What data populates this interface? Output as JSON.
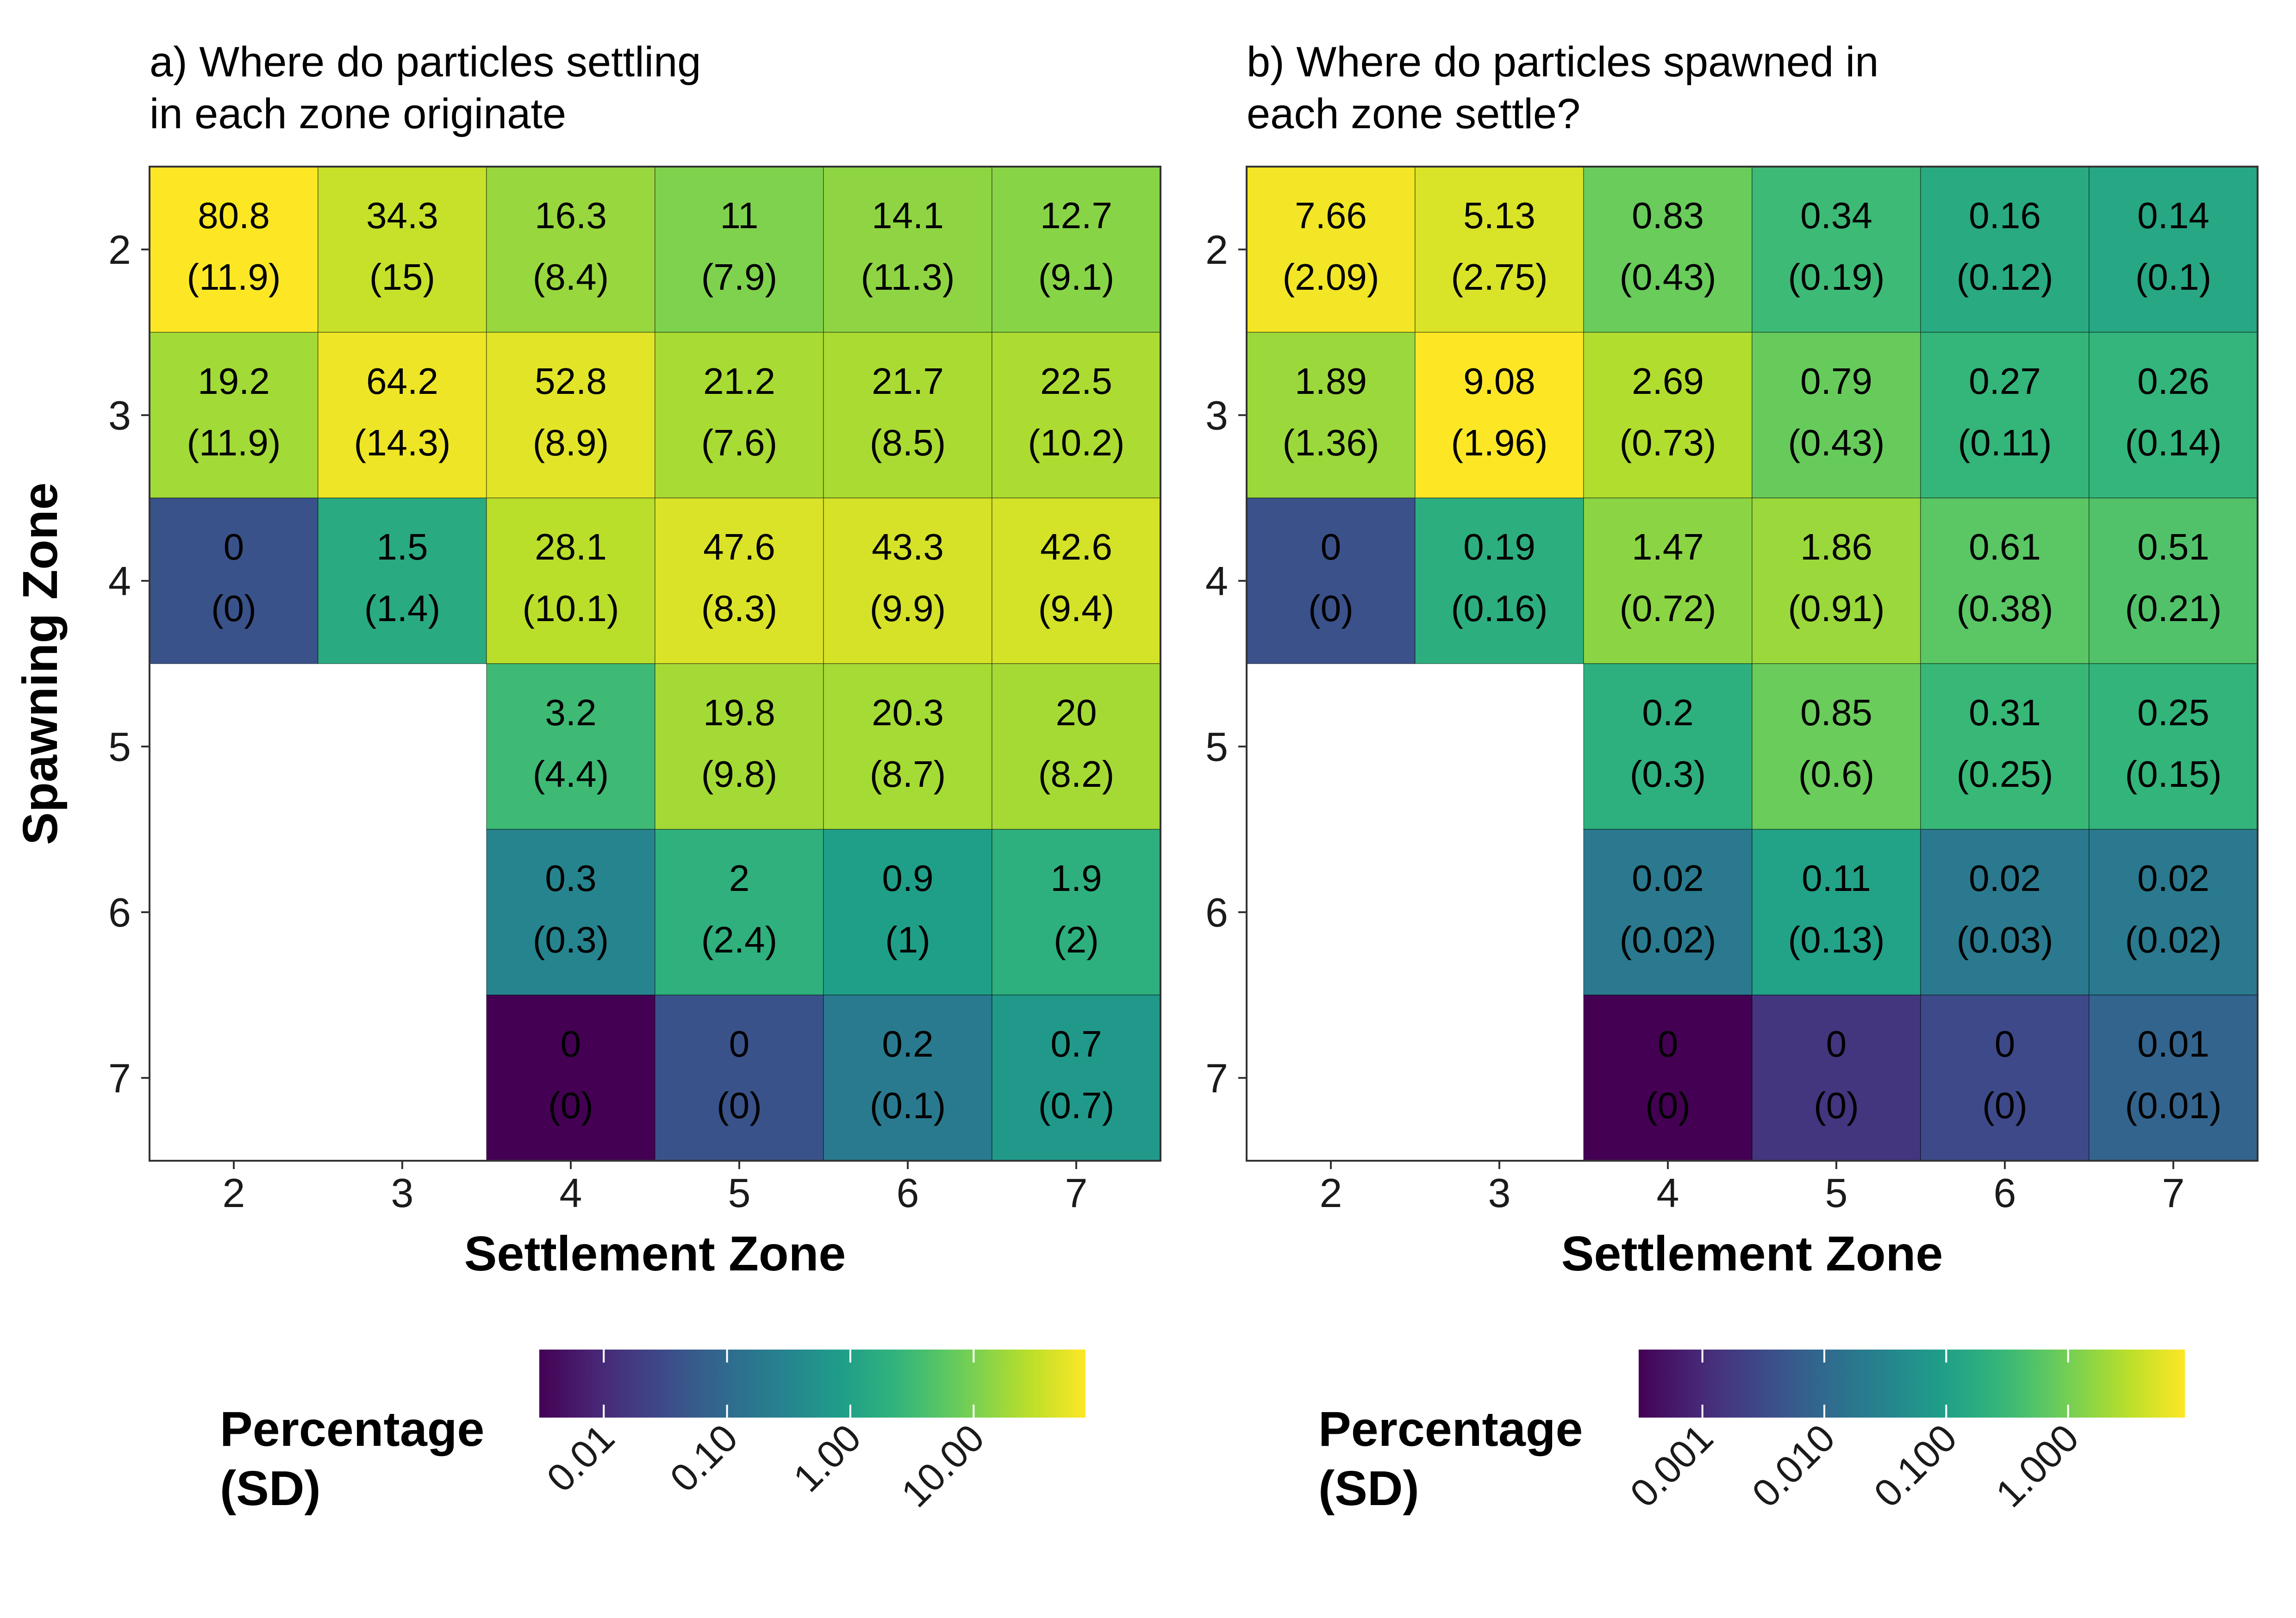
{
  "chart_data": [
    {
      "type": "heatmap",
      "title": [
        "a) Where do particles settling",
        "in each zone originate"
      ],
      "xlabel": "Settlement Zone",
      "ylabel": "Spawning Zone",
      "x_ticks": [
        "2",
        "3",
        "4",
        "5",
        "6",
        "7"
      ],
      "y_ticks": [
        "2",
        "3",
        "4",
        "5",
        "6",
        "7"
      ],
      "cells": [
        {
          "x": "2",
          "y": "2",
          "value": 80.8,
          "label": "80.8",
          "sd": "(11.9)"
        },
        {
          "x": "3",
          "y": "2",
          "value": 34.3,
          "label": "34.3",
          "sd": "(15)"
        },
        {
          "x": "4",
          "y": "2",
          "value": 16.3,
          "label": "16.3",
          "sd": "(8.4)"
        },
        {
          "x": "5",
          "y": "2",
          "value": 11,
          "label": "11",
          "sd": "(7.9)"
        },
        {
          "x": "6",
          "y": "2",
          "value": 14.1,
          "label": "14.1",
          "sd": "(11.3)"
        },
        {
          "x": "7",
          "y": "2",
          "value": 12.7,
          "label": "12.7",
          "sd": "(9.1)"
        },
        {
          "x": "2",
          "y": "3",
          "value": 19.2,
          "label": "19.2",
          "sd": "(11.9)"
        },
        {
          "x": "3",
          "y": "3",
          "value": 64.2,
          "label": "64.2",
          "sd": "(14.3)"
        },
        {
          "x": "4",
          "y": "3",
          "value": 52.8,
          "label": "52.8",
          "sd": "(8.9)"
        },
        {
          "x": "5",
          "y": "3",
          "value": 21.2,
          "label": "21.2",
          "sd": "(7.6)"
        },
        {
          "x": "6",
          "y": "3",
          "value": 21.7,
          "label": "21.7",
          "sd": "(8.5)"
        },
        {
          "x": "7",
          "y": "3",
          "value": 22.5,
          "label": "22.5",
          "sd": "(10.2)"
        },
        {
          "x": "2",
          "y": "4",
          "value": 0.04,
          "label": "0",
          "sd": "(0)"
        },
        {
          "x": "3",
          "y": "4",
          "value": 1.5,
          "label": "1.5",
          "sd": "(1.4)"
        },
        {
          "x": "4",
          "y": "4",
          "value": 28.1,
          "label": "28.1",
          "sd": "(10.1)"
        },
        {
          "x": "5",
          "y": "4",
          "value": 47.6,
          "label": "47.6",
          "sd": "(8.3)"
        },
        {
          "x": "6",
          "y": "4",
          "value": 43.3,
          "label": "43.3",
          "sd": "(9.9)"
        },
        {
          "x": "7",
          "y": "4",
          "value": 42.6,
          "label": "42.6",
          "sd": "(9.4)"
        },
        {
          "x": "4",
          "y": "5",
          "value": 3.2,
          "label": "3.2",
          "sd": "(4.4)"
        },
        {
          "x": "5",
          "y": "5",
          "value": 19.8,
          "label": "19.8",
          "sd": "(9.8)"
        },
        {
          "x": "6",
          "y": "5",
          "value": 20.3,
          "label": "20.3",
          "sd": "(8.7)"
        },
        {
          "x": "7",
          "y": "5",
          "value": 20,
          "label": "20",
          "sd": "(8.2)"
        },
        {
          "x": "4",
          "y": "6",
          "value": 0.3,
          "label": "0.3",
          "sd": "(0.3)"
        },
        {
          "x": "5",
          "y": "6",
          "value": 2,
          "label": "2",
          "sd": "(2.4)"
        },
        {
          "x": "6",
          "y": "6",
          "value": 0.9,
          "label": "0.9",
          "sd": "(1)"
        },
        {
          "x": "7",
          "y": "6",
          "value": 1.9,
          "label": "1.9",
          "sd": "(2)"
        },
        {
          "x": "4",
          "y": "7",
          "value": 0.003,
          "label": "0",
          "sd": "(0)"
        },
        {
          "x": "5",
          "y": "7",
          "value": 0.04,
          "label": "0",
          "sd": "(0)"
        },
        {
          "x": "6",
          "y": "7",
          "value": 0.2,
          "label": "0.2",
          "sd": "(0.1)"
        },
        {
          "x": "7",
          "y": "7",
          "value": 0.7,
          "label": "0.7",
          "sd": "(0.7)"
        }
      ],
      "color_scale": {
        "type": "log",
        "domain": [
          0.003,
          80.8
        ],
        "palette": "viridis",
        "ticks": [
          {
            "value": 0.01,
            "label": "0.01"
          },
          {
            "value": 0.1,
            "label": "0.10"
          },
          {
            "value": 1,
            "label": "1.00"
          },
          {
            "value": 10,
            "label": "10.00"
          }
        ]
      },
      "legend": {
        "title": [
          "Percentage",
          "(SD)"
        ],
        "position": "bottom"
      },
      "grid": false
    },
    {
      "type": "heatmap",
      "title": [
        "b) Where do particles spawned in",
        "each zone settle?"
      ],
      "xlabel": "Settlement Zone",
      "ylabel": "",
      "x_ticks": [
        "2",
        "3",
        "4",
        "5",
        "6",
        "7"
      ],
      "y_ticks": [
        "2",
        "3",
        "4",
        "5",
        "6",
        "7"
      ],
      "cells": [
        {
          "x": "2",
          "y": "2",
          "value": 7.66,
          "label": "7.66",
          "sd": "(2.09)"
        },
        {
          "x": "3",
          "y": "2",
          "value": 5.13,
          "label": "5.13",
          "sd": "(2.75)"
        },
        {
          "x": "4",
          "y": "2",
          "value": 0.83,
          "label": "0.83",
          "sd": "(0.43)"
        },
        {
          "x": "5",
          "y": "2",
          "value": 0.34,
          "label": "0.34",
          "sd": "(0.19)"
        },
        {
          "x": "6",
          "y": "2",
          "value": 0.16,
          "label": "0.16",
          "sd": "(0.12)"
        },
        {
          "x": "7",
          "y": "2",
          "value": 0.14,
          "label": "0.14",
          "sd": "(0.1)"
        },
        {
          "x": "2",
          "y": "3",
          "value": 1.89,
          "label": "1.89",
          "sd": "(1.36)"
        },
        {
          "x": "3",
          "y": "3",
          "value": 9.08,
          "label": "9.08",
          "sd": "(1.96)"
        },
        {
          "x": "4",
          "y": "3",
          "value": 2.69,
          "label": "2.69",
          "sd": "(0.73)"
        },
        {
          "x": "5",
          "y": "3",
          "value": 0.79,
          "label": "0.79",
          "sd": "(0.43)"
        },
        {
          "x": "6",
          "y": "3",
          "value": 0.27,
          "label": "0.27",
          "sd": "(0.11)"
        },
        {
          "x": "7",
          "y": "3",
          "value": 0.26,
          "label": "0.26",
          "sd": "(0.14)"
        },
        {
          "x": "2",
          "y": "4",
          "value": 0.004,
          "label": "0",
          "sd": "(0)"
        },
        {
          "x": "3",
          "y": "4",
          "value": 0.19,
          "label": "0.19",
          "sd": "(0.16)"
        },
        {
          "x": "4",
          "y": "4",
          "value": 1.47,
          "label": "1.47",
          "sd": "(0.72)"
        },
        {
          "x": "5",
          "y": "4",
          "value": 1.86,
          "label": "1.86",
          "sd": "(0.91)"
        },
        {
          "x": "6",
          "y": "4",
          "value": 0.61,
          "label": "0.61",
          "sd": "(0.38)"
        },
        {
          "x": "7",
          "y": "4",
          "value": 0.51,
          "label": "0.51",
          "sd": "(0.21)"
        },
        {
          "x": "4",
          "y": "5",
          "value": 0.2,
          "label": "0.2",
          "sd": "(0.3)"
        },
        {
          "x": "5",
          "y": "5",
          "value": 0.85,
          "label": "0.85",
          "sd": "(0.6)"
        },
        {
          "x": "6",
          "y": "5",
          "value": 0.31,
          "label": "0.31",
          "sd": "(0.25)"
        },
        {
          "x": "7",
          "y": "5",
          "value": 0.25,
          "label": "0.25",
          "sd": "(0.15)"
        },
        {
          "x": "4",
          "y": "6",
          "value": 0.02,
          "label": "0.02",
          "sd": "(0.02)"
        },
        {
          "x": "5",
          "y": "6",
          "value": 0.11,
          "label": "0.11",
          "sd": "(0.13)"
        },
        {
          "x": "6",
          "y": "6",
          "value": 0.02,
          "label": "0.02",
          "sd": "(0.03)"
        },
        {
          "x": "7",
          "y": "6",
          "value": 0.02,
          "label": "0.02",
          "sd": "(0.02)"
        },
        {
          "x": "4",
          "y": "7",
          "value": 0.0003,
          "label": "0",
          "sd": "(0)"
        },
        {
          "x": "5",
          "y": "7",
          "value": 0.0015,
          "label": "0",
          "sd": "(0)"
        },
        {
          "x": "6",
          "y": "7",
          "value": 0.003,
          "label": "0",
          "sd": "(0)"
        },
        {
          "x": "7",
          "y": "7",
          "value": 0.008,
          "label": "0.01",
          "sd": "(0.01)"
        }
      ],
      "color_scale": {
        "type": "log",
        "domain": [
          0.0003,
          9.08
        ],
        "palette": "viridis",
        "ticks": [
          {
            "value": 0.001,
            "label": "0.001"
          },
          {
            "value": 0.01,
            "label": "0.010"
          },
          {
            "value": 0.1,
            "label": "0.100"
          },
          {
            "value": 1,
            "label": "1.000"
          }
        ]
      },
      "legend": {
        "title": [
          "Percentage",
          "(SD)"
        ],
        "position": "bottom"
      },
      "grid": false
    }
  ]
}
